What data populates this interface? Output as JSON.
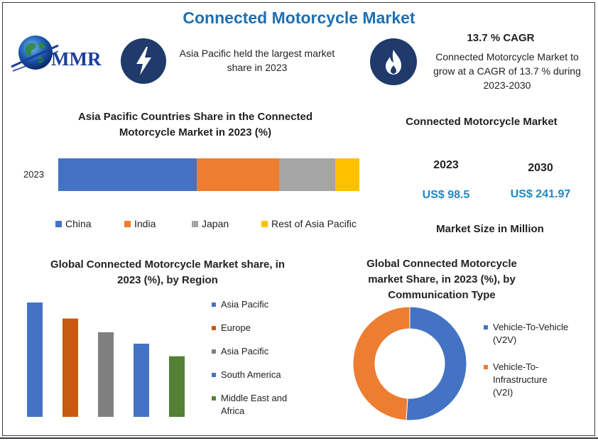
{
  "header": {
    "title": "Connected Motorcycle Market"
  },
  "logo": {
    "text": "MMR",
    "icon": "globe-icon"
  },
  "info_left": {
    "icon": "lightning-bolt-icon",
    "text": "Asia Pacific held the largest market share in 2023"
  },
  "info_right": {
    "icon": "flame-icon",
    "heading": "13.7 % CAGR",
    "text": "Connected Motorcycle Market to grow at a CAGR of 13.7 % during 2023-2030"
  },
  "market_size": {
    "title": "Connected Motorcycle Market",
    "year1": "2023",
    "value1": "US$ 98.5",
    "year2": "2030",
    "value2": "US$ 241.97",
    "caption": "Market Size in Million"
  },
  "chart_data": [
    {
      "type": "bar",
      "orientation": "horizontal",
      "stacked": true,
      "title": "Asia Pacific Countries Share in the Connected Motorcycle Market in 2023 (%)",
      "categories": [
        "2023"
      ],
      "series": [
        {
          "name": "China",
          "values": [
            46
          ],
          "color": "#4472c4"
        },
        {
          "name": "India",
          "values": [
            27.5
          ],
          "color": "#ed7d31"
        },
        {
          "name": "Japan",
          "values": [
            18.5
          ],
          "color": "#a5a5a5"
        },
        {
          "name": "Rest of Asia Pacific",
          "values": [
            8
          ],
          "color": "#ffc000"
        }
      ],
      "legend_position": "bottom"
    },
    {
      "type": "bar",
      "title": "Global Connected Motorcycle Market share, in 2023 (%), by Region",
      "categories": [
        "Asia Pacific",
        "Europe",
        "Asia Pacific",
        "South America",
        "Middle East and Africa"
      ],
      "values": [
        100,
        86,
        74,
        64,
        53
      ],
      "colors": [
        "#4472c4",
        "#c55a11",
        "#7f7f7f",
        "#4472c4",
        "#538135"
      ],
      "legend_position": "right"
    },
    {
      "type": "pie",
      "donut": true,
      "title": "Global Connected Motorcycle market Share, in 2023 (%), by Communication Type",
      "categories": [
        "Vehicle-To-Vehicle (V2V)",
        "Vehicle-To-Infrastructure (V2I)"
      ],
      "values": [
        51,
        49
      ],
      "colors": [
        "#4472c4",
        "#ed7d31"
      ],
      "legend_position": "right"
    }
  ]
}
